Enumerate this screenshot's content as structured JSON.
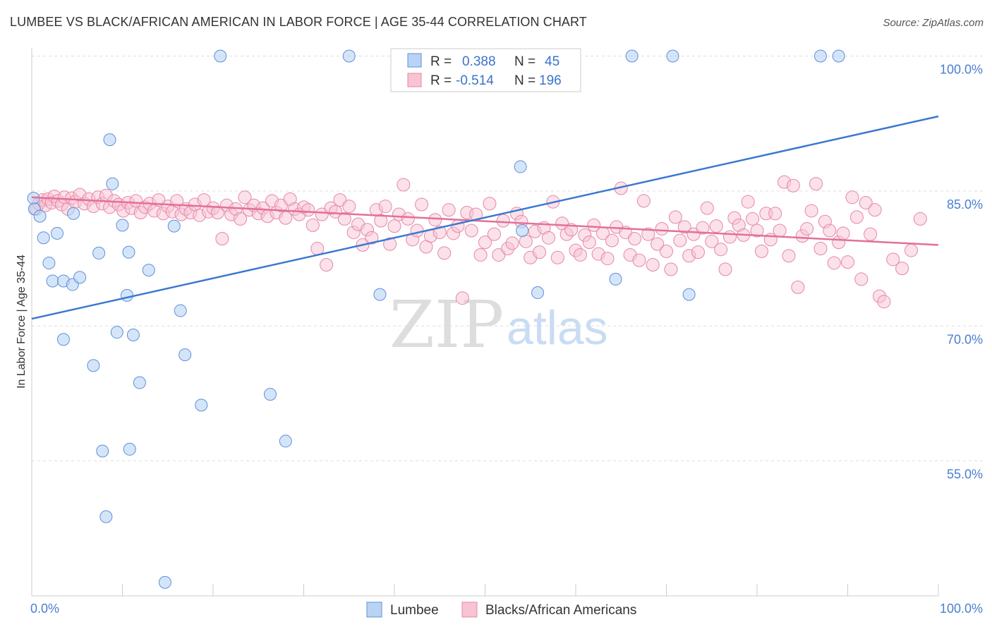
{
  "header": {
    "title": "LUMBEE VS BLACK/AFRICAN AMERICAN IN LABOR FORCE | AGE 35-44 CORRELATION CHART",
    "source": "Source: ZipAtlas.com"
  },
  "watermark": {
    "zip": "ZIP",
    "atlas": "atlas"
  },
  "stats": [
    {
      "r_label": "R =",
      "r_value": "0.388",
      "n_label": "N =",
      "n_value": "45"
    },
    {
      "r_label": "R =",
      "r_value": "-0.514",
      "n_label": "N =",
      "n_value": "196"
    }
  ],
  "chart_data": {
    "type": "scatter",
    "title": "LUMBEE VS BLACK/AFRICAN AMERICAN IN LABOR FORCE | AGE 35-44 CORRELATION CHART",
    "xlabel": "",
    "ylabel": "In Labor Force | Age 35-44",
    "xlim": [
      0,
      100
    ],
    "ylim": [
      40,
      100
    ],
    "x_tick_labels": [
      "0.0%",
      "100.0%"
    ],
    "y_ticks": [
      {
        "value": 100,
        "label": "100.0%"
      },
      {
        "value": 85,
        "label": "85.0%"
      },
      {
        "value": 70,
        "label": "70.0%"
      },
      {
        "value": 55,
        "label": "55.0%"
      }
    ],
    "grid": "horizontal dashed",
    "legend_position": "bottom-center",
    "colors": {
      "lumbee_fill": "#b9d3f5",
      "lumbee_stroke": "#5d90d8",
      "lumbee_line": "#3a78d0",
      "black_fill": "#f8c3d3",
      "black_stroke": "#e687a6",
      "black_line": "#e2709a",
      "tick_text": "#4a7fd0"
    },
    "series": [
      {
        "name": "Lumbee",
        "trend": {
          "x": [
            0,
            100
          ],
          "y": [
            70.8,
            93.3
          ]
        },
        "points": [
          [
            0.2,
            84.2
          ],
          [
            0.3,
            83.0
          ],
          [
            0.9,
            82.2
          ],
          [
            1.3,
            79.8
          ],
          [
            1.9,
            77.0
          ],
          [
            2.3,
            75.0
          ],
          [
            2.8,
            80.3
          ],
          [
            3.5,
            75.0
          ],
          [
            3.5,
            68.5
          ],
          [
            4.5,
            74.6
          ],
          [
            4.6,
            82.5
          ],
          [
            5.3,
            75.4
          ],
          [
            6.8,
            65.6
          ],
          [
            7.4,
            78.1
          ],
          [
            7.8,
            56.1
          ],
          [
            8.2,
            48.8
          ],
          [
            8.6,
            90.7
          ],
          [
            8.9,
            85.8
          ],
          [
            9.4,
            69.3
          ],
          [
            10.0,
            81.2
          ],
          [
            10.5,
            73.4
          ],
          [
            10.7,
            78.2
          ],
          [
            10.8,
            56.3
          ],
          [
            11.2,
            69.0
          ],
          [
            11.9,
            63.7
          ],
          [
            12.9,
            76.2
          ],
          [
            14.7,
            41.5
          ],
          [
            15.7,
            81.1
          ],
          [
            16.4,
            71.7
          ],
          [
            16.9,
            66.8
          ],
          [
            18.7,
            61.2
          ],
          [
            20.8,
            100.0
          ],
          [
            26.3,
            62.4
          ],
          [
            28.0,
            57.2
          ],
          [
            35.0,
            100.0
          ],
          [
            38.4,
            73.5
          ],
          [
            54.1,
            80.6
          ],
          [
            53.9,
            87.7
          ],
          [
            55.8,
            73.7
          ],
          [
            66.2,
            100.0
          ],
          [
            64.4,
            75.2
          ],
          [
            70.7,
            100.0
          ],
          [
            72.5,
            73.5
          ],
          [
            87.0,
            100.0
          ],
          [
            89.0,
            100.0
          ]
        ]
      },
      {
        "name": "Blacks/African Americans",
        "trend": {
          "x": [
            0,
            100
          ],
          "y": [
            84.3,
            79.0
          ]
        },
        "points": [
          [
            0.5,
            83.0
          ],
          [
            0.8,
            83.6
          ],
          [
            1.2,
            84.0
          ],
          [
            1.5,
            83.4
          ],
          [
            1.8,
            84.1
          ],
          [
            2.2,
            83.7
          ],
          [
            2.5,
            84.4
          ],
          [
            2.9,
            83.9
          ],
          [
            3.3,
            83.5
          ],
          [
            3.6,
            84.3
          ],
          [
            4.0,
            83.0
          ],
          [
            4.4,
            84.2
          ],
          [
            4.8,
            83.8
          ],
          [
            5.3,
            84.6
          ],
          [
            5.8,
            83.6
          ],
          [
            6.3,
            84.1
          ],
          [
            6.8,
            83.3
          ],
          [
            7.3,
            84.3
          ],
          [
            7.8,
            83.6
          ],
          [
            8.2,
            84.5
          ],
          [
            8.6,
            83.2
          ],
          [
            9.1,
            83.9
          ],
          [
            9.6,
            83.5
          ],
          [
            10.1,
            82.8
          ],
          [
            10.6,
            83.7
          ],
          [
            11.0,
            83.1
          ],
          [
            11.5,
            83.9
          ],
          [
            12.0,
            82.6
          ],
          [
            12.5,
            83.2
          ],
          [
            13.0,
            83.6
          ],
          [
            13.5,
            82.8
          ],
          [
            14.0,
            84.0
          ],
          [
            14.5,
            82.5
          ],
          [
            15.0,
            83.3
          ],
          [
            15.5,
            82.7
          ],
          [
            16.0,
            83.9
          ],
          [
            16.5,
            82.4
          ],
          [
            17.0,
            83.0
          ],
          [
            17.5,
            82.6
          ],
          [
            18.0,
            83.5
          ],
          [
            18.5,
            82.3
          ],
          [
            19.0,
            84.0
          ],
          [
            19.5,
            82.7
          ],
          [
            20.0,
            83.1
          ],
          [
            20.5,
            82.6
          ],
          [
            21.0,
            79.7
          ],
          [
            21.5,
            83.4
          ],
          [
            22.0,
            82.4
          ],
          [
            22.5,
            83.0
          ],
          [
            23.0,
            81.9
          ],
          [
            23.5,
            84.3
          ],
          [
            24.0,
            82.9
          ],
          [
            24.5,
            83.4
          ],
          [
            25.0,
            82.5
          ],
          [
            25.5,
            83.1
          ],
          [
            26.0,
            82.2
          ],
          [
            26.5,
            83.9
          ],
          [
            27.0,
            82.6
          ],
          [
            27.5,
            83.4
          ],
          [
            28.0,
            82.0
          ],
          [
            28.5,
            84.1
          ],
          [
            29.0,
            83.0
          ],
          [
            29.5,
            82.4
          ],
          [
            30.0,
            83.2
          ],
          [
            30.5,
            82.9
          ],
          [
            31.0,
            81.2
          ],
          [
            31.5,
            78.6
          ],
          [
            32.0,
            82.4
          ],
          [
            32.5,
            76.8
          ],
          [
            33.0,
            83.1
          ],
          [
            33.5,
            82.7
          ],
          [
            34.0,
            84.0
          ],
          [
            34.5,
            81.9
          ],
          [
            35.0,
            83.3
          ],
          [
            35.5,
            80.4
          ],
          [
            36.0,
            81.3
          ],
          [
            36.5,
            79.0
          ],
          [
            37.0,
            80.7
          ],
          [
            37.5,
            79.8
          ],
          [
            38.0,
            82.9
          ],
          [
            38.5,
            81.7
          ],
          [
            39.0,
            83.3
          ],
          [
            39.5,
            79.1
          ],
          [
            40.0,
            81.1
          ],
          [
            40.5,
            82.4
          ],
          [
            41.0,
            85.7
          ],
          [
            41.5,
            81.9
          ],
          [
            42.0,
            79.6
          ],
          [
            42.5,
            80.6
          ],
          [
            43.0,
            83.5
          ],
          [
            43.5,
            78.8
          ],
          [
            44.0,
            80.0
          ],
          [
            44.5,
            81.8
          ],
          [
            45.0,
            80.4
          ],
          [
            45.5,
            78.1
          ],
          [
            46.0,
            82.9
          ],
          [
            46.5,
            80.3
          ],
          [
            47.0,
            81.1
          ],
          [
            47.5,
            73.1
          ],
          [
            48.0,
            82.6
          ],
          [
            48.5,
            80.6
          ],
          [
            49.0,
            82.4
          ],
          [
            49.5,
            77.9
          ],
          [
            50.0,
            79.3
          ],
          [
            50.5,
            83.6
          ],
          [
            51.0,
            80.2
          ],
          [
            51.5,
            77.9
          ],
          [
            52.0,
            81.7
          ],
          [
            52.5,
            78.6
          ],
          [
            53.0,
            79.2
          ],
          [
            53.5,
            82.5
          ],
          [
            54.0,
            81.6
          ],
          [
            54.5,
            79.4
          ],
          [
            55.0,
            77.6
          ],
          [
            55.5,
            80.5
          ],
          [
            56.0,
            78.2
          ],
          [
            56.5,
            80.9
          ],
          [
            57.0,
            79.8
          ],
          [
            57.5,
            83.8
          ],
          [
            58.0,
            77.6
          ],
          [
            58.5,
            81.4
          ],
          [
            59.0,
            80.2
          ],
          [
            59.5,
            80.7
          ],
          [
            60.0,
            78.4
          ],
          [
            60.5,
            77.9
          ],
          [
            61.0,
            80.1
          ],
          [
            61.5,
            79.3
          ],
          [
            62.0,
            81.2
          ],
          [
            62.5,
            78.0
          ],
          [
            63.0,
            80.3
          ],
          [
            63.5,
            77.5
          ],
          [
            64.0,
            79.5
          ],
          [
            64.5,
            81.0
          ],
          [
            65.0,
            85.3
          ],
          [
            65.5,
            80.4
          ],
          [
            66.0,
            77.9
          ],
          [
            66.5,
            79.7
          ],
          [
            67.0,
            77.3
          ],
          [
            67.5,
            83.9
          ],
          [
            68.0,
            80.2
          ],
          [
            68.5,
            76.8
          ],
          [
            69.0,
            79.1
          ],
          [
            69.5,
            80.8
          ],
          [
            70.0,
            78.3
          ],
          [
            70.5,
            76.3
          ],
          [
            71.0,
            82.1
          ],
          [
            71.5,
            79.5
          ],
          [
            72.0,
            81.0
          ],
          [
            72.5,
            77.8
          ],
          [
            73.0,
            80.2
          ],
          [
            73.5,
            78.2
          ],
          [
            74.0,
            80.9
          ],
          [
            74.5,
            83.1
          ],
          [
            75.0,
            79.4
          ],
          [
            75.5,
            81.1
          ],
          [
            76.0,
            78.5
          ],
          [
            76.5,
            76.3
          ],
          [
            77.0,
            79.9
          ],
          [
            77.5,
            82.0
          ],
          [
            78.0,
            81.2
          ],
          [
            78.5,
            80.1
          ],
          [
            79.0,
            83.8
          ],
          [
            79.5,
            81.9
          ],
          [
            80.0,
            80.6
          ],
          [
            80.5,
            78.3
          ],
          [
            81.0,
            82.5
          ],
          [
            81.5,
            79.6
          ],
          [
            82.0,
            82.5
          ],
          [
            82.5,
            80.6
          ],
          [
            83.0,
            86.0
          ],
          [
            83.5,
            77.8
          ],
          [
            84.0,
            85.6
          ],
          [
            84.5,
            74.3
          ],
          [
            85.0,
            80.0
          ],
          [
            85.5,
            80.8
          ],
          [
            86.0,
            82.8
          ],
          [
            86.5,
            85.8
          ],
          [
            87.0,
            78.6
          ],
          [
            87.5,
            81.6
          ],
          [
            88.0,
            80.6
          ],
          [
            88.5,
            77.0
          ],
          [
            89.0,
            79.3
          ],
          [
            89.5,
            80.3
          ],
          [
            90.0,
            77.1
          ],
          [
            90.5,
            84.3
          ],
          [
            91.0,
            82.1
          ],
          [
            91.5,
            75.2
          ],
          [
            92.0,
            83.7
          ],
          [
            92.5,
            80.2
          ],
          [
            93.0,
            82.9
          ],
          [
            93.5,
            73.3
          ],
          [
            94.0,
            72.7
          ],
          [
            95.0,
            77.4
          ],
          [
            96.0,
            76.4
          ],
          [
            97.0,
            78.4
          ],
          [
            98.0,
            81.9
          ]
        ]
      }
    ]
  },
  "legend": [
    {
      "label": "Lumbee"
    },
    {
      "label": "Blacks/African Americans"
    }
  ]
}
